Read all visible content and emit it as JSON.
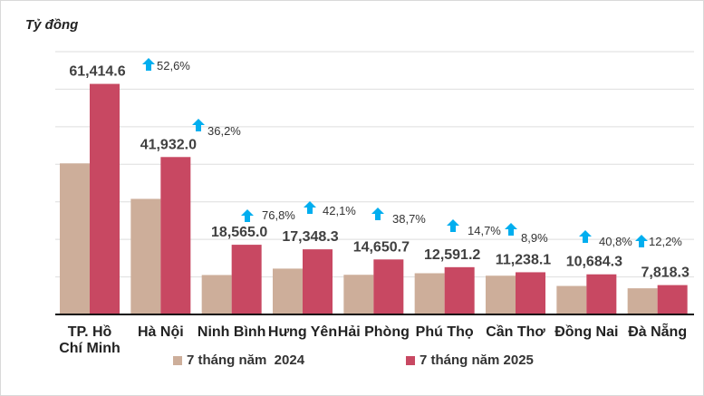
{
  "chart_data": {
    "type": "bar",
    "ylabel": "Tỷ đồng",
    "ylim": [
      0,
      70000
    ],
    "grid": true,
    "categories": [
      "TP. Hồ Chí Minh",
      "Hà Nội",
      "Ninh Bình",
      "Hưng Yên",
      "Hải Phòng",
      "Phú Thọ",
      "Cần Thơ",
      "Đồng Nai",
      "Đà Nẵng"
    ],
    "series": [
      {
        "name": "7 tháng năm  2024",
        "color": "#cdae9a",
        "values": [
          40245,
          30787,
          10501,
          12209,
          10563,
          10977,
          10320,
          7588,
          6968
        ]
      },
      {
        "name": "7 tháng năm 2025",
        "color": "#c84862",
        "values": [
          61414.6,
          41932.0,
          18565.0,
          17348.3,
          14650.7,
          12591.2,
          11238.1,
          10684.3,
          7818.3
        ],
        "data_labels": [
          "61,414.6",
          "41,932.0",
          "18,565.0",
          "17,348.3",
          "14,650.7",
          "12,591.2",
          "11,238.1",
          "10,684.3",
          "7,818.3"
        ]
      }
    ],
    "growth_labels": [
      "52,6%",
      "36,2%",
      "76,8%",
      "42,1%",
      "38,7%",
      "14,7%",
      "8,9%",
      "40,8%",
      "12,2%"
    ],
    "growth_icon": "arrow-up-icon",
    "growth_color": "#00aeef",
    "legend": "bottom"
  }
}
